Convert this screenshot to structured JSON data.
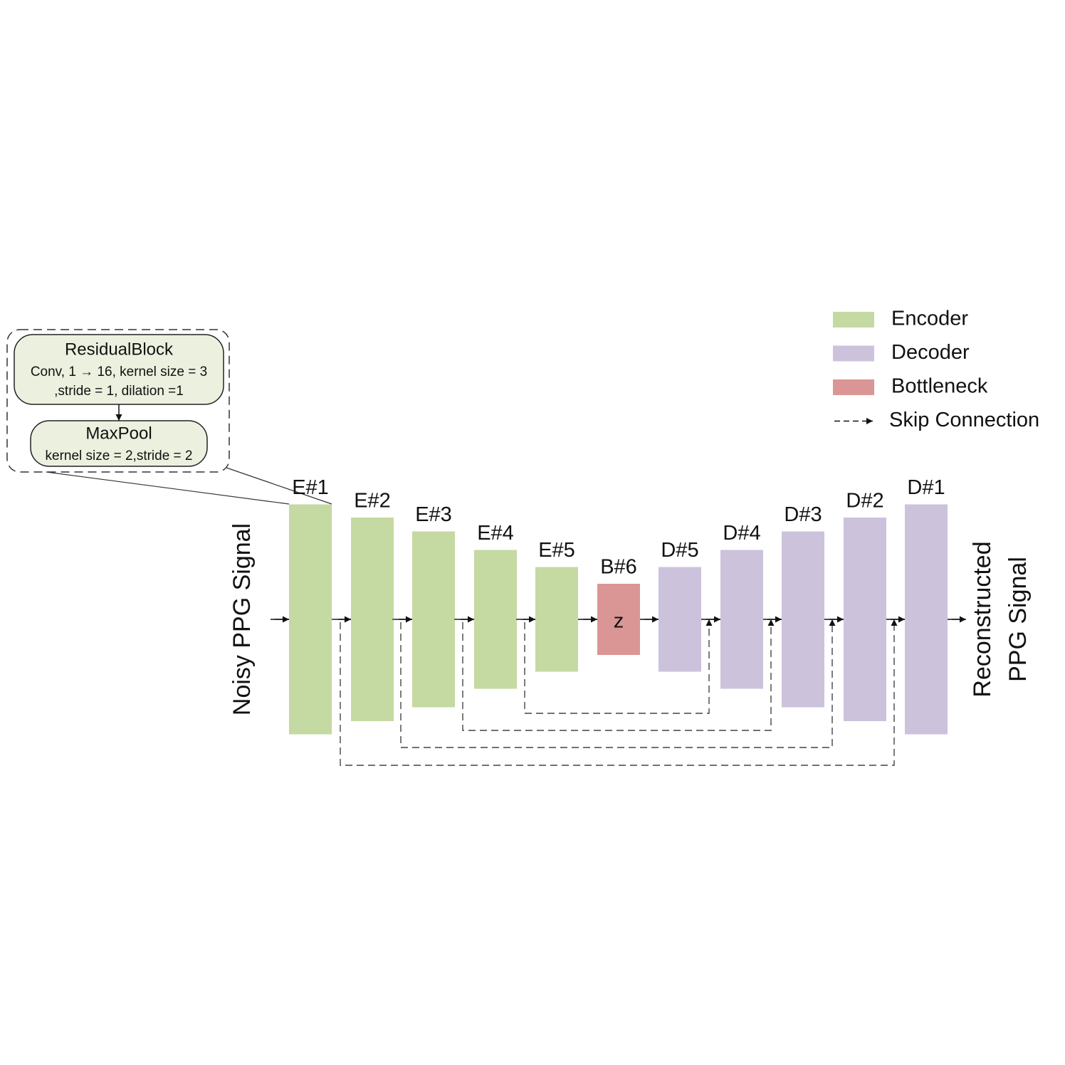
{
  "legend": {
    "items": [
      {
        "label": "Encoder",
        "color": "#c5d9a2"
      },
      {
        "label": "Decoder",
        "color": "#cdc2dc"
      },
      {
        "label": "Bottleneck",
        "color": "#da9694"
      },
      {
        "label": "Skip Connection"
      }
    ]
  },
  "detail": {
    "residual": {
      "title": "ResidualBlock",
      "lines": [
        "Conv, 1 → 16,  kernel size = 3",
        ",stride = 1, dilation =1"
      ]
    },
    "maxpool": {
      "title": "MaxPool",
      "lines": [
        "kernel size = 2,stride = 2"
      ]
    }
  },
  "input_label": "Noisy PPG Signal",
  "output_label": [
    "Reconstructed",
    "PPG Signal"
  ],
  "encoder_blocks": [
    "E#1",
    "E#2",
    "E#3",
    "E#4",
    "E#5"
  ],
  "bottleneck": {
    "label": "B#6",
    "text": "z"
  },
  "decoder_blocks": [
    "D#5",
    "D#4",
    "D#3",
    "D#2",
    "D#1"
  ]
}
